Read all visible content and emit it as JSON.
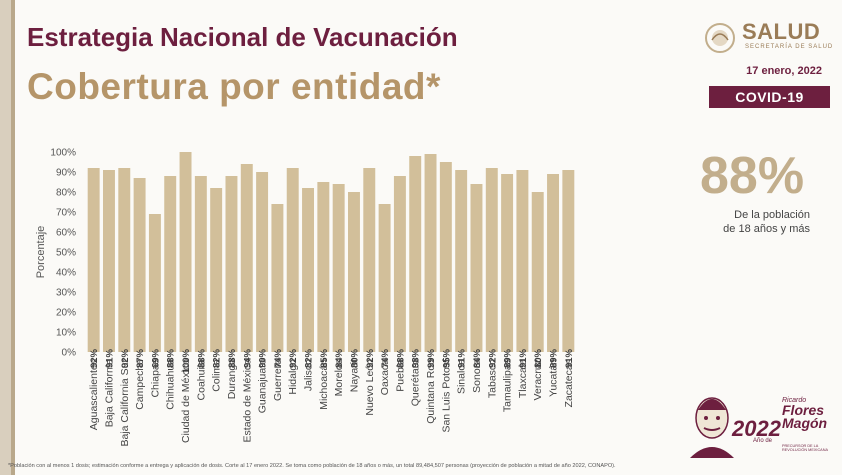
{
  "header": {
    "title": "Estrategia Nacional de Vacunación",
    "subtitle": "Cobertura por entidad*",
    "logo_text": "SALUD",
    "logo_subtext": "SECRETARÍA DE SALUD",
    "date": "17 enero, 2022",
    "badge": "COVID-19"
  },
  "summary": {
    "value": "88%",
    "caption_line1": "De la población",
    "caption_line2": "de 18 años y más"
  },
  "footer": {
    "note": "*Población con al menos 1 dosis; estimación conforme a entrega y aplicación de dosis. Corte al 17 enero 2022. Se toma como población de 18 años o más, un total 89,484,507 personas (proyección de población a mitad de año 2022, CONAPO).",
    "anniversary_year": "2022",
    "anniversary_ano": "Año de",
    "anniversary_name_line1": "Flores",
    "anniversary_name_line2": "Magón",
    "anniversary_firstname": "Ricardo",
    "anniversary_tagline": "PRECURSOR DE LA REVOLUCIÓN MEXICANA"
  },
  "colors": {
    "bar": "#d2bf9a",
    "title": "#6d1f3f",
    "subtitle": "#b59569",
    "big_number": "#c2ae8c"
  },
  "chart_data": {
    "type": "bar",
    "ylabel": "Porcentaje",
    "ylim": [
      0,
      100
    ],
    "yticks": [
      "0%",
      "10%",
      "20%",
      "30%",
      "40%",
      "50%",
      "60%",
      "70%",
      "80%",
      "90%",
      "100%"
    ],
    "categories": [
      "Aguascalientes",
      "Baja California",
      "Baja California Sur",
      "Campeche",
      "Chiapas",
      "Chihuahua",
      "Ciudad de México",
      "Coahuila",
      "Colima",
      "Durango",
      "Estado de México",
      "Guanajuato",
      "Guerrero",
      "Hidalgo",
      "Jalisco",
      "Michoacán",
      "Morelos",
      "Nayarit",
      "Nuevo León",
      "Oaxaca",
      "Puebla",
      "Querétaro",
      "Quintana Roo",
      "San Luis Potosí",
      "Sinaloa",
      "Sonora",
      "Tabasco",
      "Tamaulipas",
      "Tlaxcala",
      "Veracruz",
      "Yucatán",
      "Zacatecas"
    ],
    "values": [
      92,
      91,
      92,
      87,
      69,
      88,
      100,
      88,
      82,
      88,
      94,
      90,
      74,
      92,
      82,
      85,
      84,
      80,
      92,
      74,
      88,
      98,
      99,
      95,
      91,
      84,
      92,
      89,
      91,
      80,
      89,
      91
    ],
    "labels": [
      "92%",
      "91%",
      "92%",
      "87%",
      "69%",
      "88%",
      "100%",
      "88%",
      "82%",
      "88%",
      "94%",
      "90%",
      "74%",
      "92%",
      "82%",
      "85%",
      "84%",
      "80%",
      "92%",
      "74%",
      "88%",
      "98%",
      "99%",
      "95%",
      "91%",
      "84%",
      "92%",
      "89%",
      "91%",
      "80%",
      "89%",
      "91%"
    ],
    "grid": false,
    "legend": "none"
  }
}
